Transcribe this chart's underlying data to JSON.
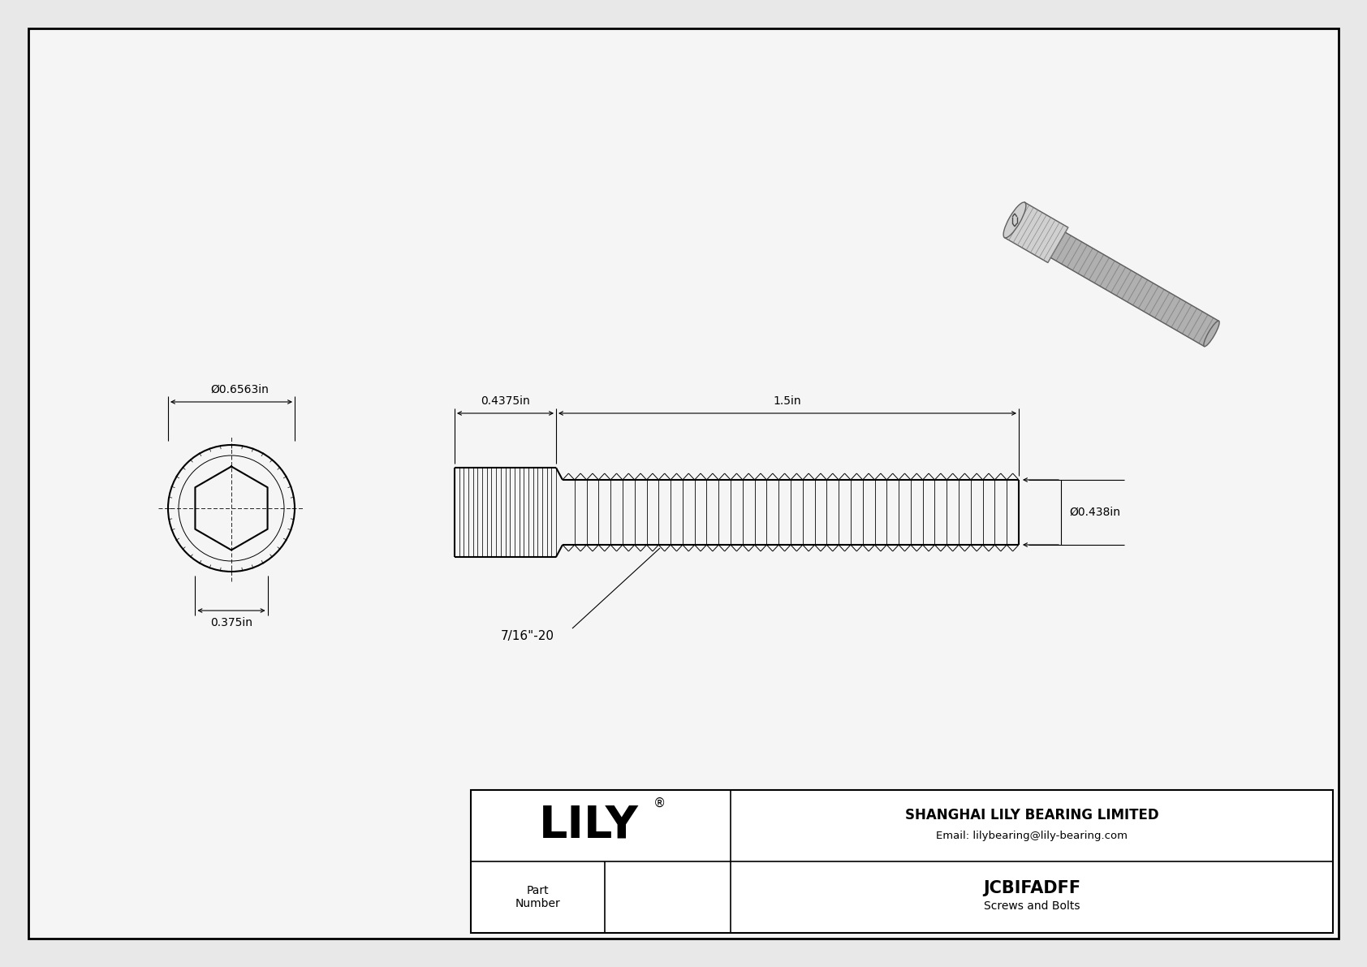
{
  "bg_color": "#e8e8e8",
  "drawing_bg": "#f5f5f5",
  "border_color": "#000000",
  "line_color": "#000000",
  "title": "JCBIFADFF",
  "subtitle": "Screws and Bolts",
  "company": "SHANGHAI LILY BEARING LIMITED",
  "email": "Email: lilybearing@lily-bearing.com",
  "part_label": "Part\nNumber",
  "lily_text": "LILY",
  "dim_outer_dia": "Ø0.6563in",
  "dim_head_len": "0.4375in",
  "dim_body_len": "1.5in",
  "dim_body_dia": "Ø0.438in",
  "dim_hex_width": "0.375in",
  "dim_thread": "7/16\"-20",
  "font_size_dim": 10,
  "font_size_label": 10,
  "font_size_lily": 40,
  "font_size_company": 12,
  "font_size_part": 15,
  "font_size_thread": 11
}
